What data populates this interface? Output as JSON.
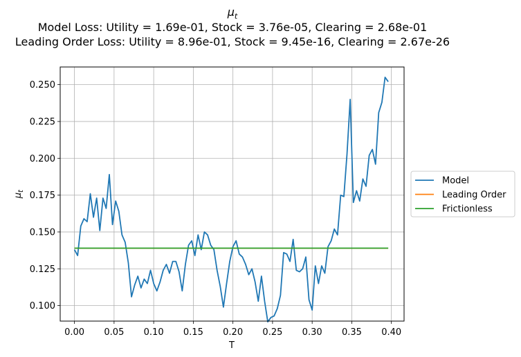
{
  "chart_data": {
    "type": "line",
    "title": [
      "μt",
      "Model Loss: Utility = 1.69e-01, Stock = 3.76e-05, Clearing = 2.68e-01",
      "Leading Order Loss: Utility = 8.96e-01, Stock = 9.45e-16, Clearing = 2.67e-26"
    ],
    "xlabel": "T",
    "ylabel": "μt",
    "xlim": [
      -0.018,
      0.416
    ],
    "ylim": [
      0.0895,
      0.262
    ],
    "xticks": [
      0.0,
      0.05,
      0.1,
      0.15,
      0.2,
      0.25,
      0.3,
      0.35,
      0.4
    ],
    "xtick_labels": [
      "0.00",
      "0.05",
      "0.10",
      "0.15",
      "0.20",
      "0.25",
      "0.30",
      "0.35",
      "0.40"
    ],
    "yticks": [
      0.1,
      0.125,
      0.15,
      0.175,
      0.2,
      0.225,
      0.25
    ],
    "ytick_labels": [
      "0.100",
      "0.125",
      "0.150",
      "0.175",
      "0.200",
      "0.225",
      "0.250"
    ],
    "grid": true,
    "legend_position": "right-outside",
    "series": [
      {
        "name": "Model",
        "color": "#1f77b4",
        "x": [
          0.0,
          0.004,
          0.008,
          0.012,
          0.016,
          0.02,
          0.024,
          0.028,
          0.032,
          0.036,
          0.04,
          0.044,
          0.048,
          0.052,
          0.056,
          0.06,
          0.064,
          0.068,
          0.072,
          0.076,
          0.08,
          0.084,
          0.088,
          0.092,
          0.096,
          0.1,
          0.104,
          0.108,
          0.112,
          0.116,
          0.12,
          0.124,
          0.128,
          0.132,
          0.136,
          0.14,
          0.144,
          0.148,
          0.152,
          0.156,
          0.16,
          0.164,
          0.168,
          0.172,
          0.176,
          0.18,
          0.184,
          0.188,
          0.192,
          0.196,
          0.2,
          0.204,
          0.208,
          0.212,
          0.216,
          0.22,
          0.224,
          0.228,
          0.232,
          0.236,
          0.24,
          0.244,
          0.248,
          0.252,
          0.256,
          0.26,
          0.264,
          0.268,
          0.272,
          0.276,
          0.28,
          0.284,
          0.288,
          0.292,
          0.296,
          0.3,
          0.304,
          0.308,
          0.312,
          0.316,
          0.32,
          0.324,
          0.328,
          0.332,
          0.336,
          0.34,
          0.344,
          0.348,
          0.352,
          0.356,
          0.36,
          0.364,
          0.368,
          0.372,
          0.376,
          0.38,
          0.384,
          0.388,
          0.392,
          0.396
        ],
        "y": [
          0.138,
          0.134,
          0.154,
          0.159,
          0.157,
          0.176,
          0.16,
          0.173,
          0.151,
          0.173,
          0.166,
          0.189,
          0.155,
          0.171,
          0.164,
          0.148,
          0.143,
          0.129,
          0.106,
          0.114,
          0.12,
          0.112,
          0.118,
          0.115,
          0.124,
          0.115,
          0.11,
          0.116,
          0.124,
          0.128,
          0.122,
          0.13,
          0.13,
          0.123,
          0.11,
          0.128,
          0.141,
          0.144,
          0.134,
          0.148,
          0.138,
          0.15,
          0.148,
          0.141,
          0.138,
          0.124,
          0.113,
          0.099,
          0.115,
          0.13,
          0.14,
          0.144,
          0.135,
          0.133,
          0.128,
          0.121,
          0.125,
          0.116,
          0.103,
          0.12,
          0.103,
          0.089,
          0.092,
          0.093,
          0.098,
          0.107,
          0.136,
          0.135,
          0.13,
          0.145,
          0.124,
          0.123,
          0.125,
          0.133,
          0.104,
          0.097,
          0.127,
          0.115,
          0.127,
          0.122,
          0.14,
          0.144,
          0.152,
          0.148,
          0.175,
          0.174,
          0.203,
          0.24,
          0.17,
          0.178,
          0.171,
          0.186,
          0.181,
          0.202,
          0.206,
          0.196,
          0.231,
          0.238,
          0.255,
          0.252
        ]
      },
      {
        "name": "Leading Order",
        "color": "#ff7f0e",
        "x": [
          0.0,
          0.396
        ],
        "y": [
          0.139,
          0.139
        ]
      },
      {
        "name": "Frictionless",
        "color": "#2ca02c",
        "x": [
          0.0,
          0.396
        ],
        "y": [
          0.139,
          0.139
        ]
      }
    ]
  }
}
